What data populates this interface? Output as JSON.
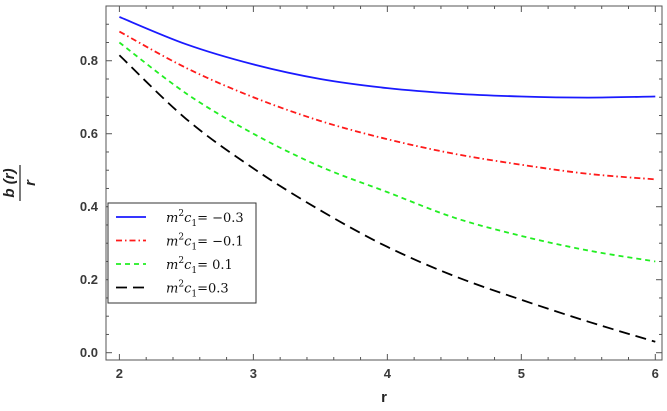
{
  "chart_data": {
    "type": "line",
    "xlabel": "r",
    "ylabel_num": "b (r)",
    "ylabel_den": "r",
    "xlim": [
      1.9,
      6.05
    ],
    "ylim": [
      -0.02,
      0.95
    ],
    "xticks": [
      2,
      3,
      4,
      5,
      6
    ],
    "xtick_labels": [
      "2",
      "3",
      "4",
      "5",
      "6"
    ],
    "yticks": [
      0.0,
      0.2,
      0.4,
      0.6,
      0.8
    ],
    "ytick_labels": [
      "0.0",
      "0.2",
      "0.4",
      "0.6",
      "0.8"
    ],
    "grid": false,
    "legend_position": "lower-left",
    "x": [
      2.0,
      2.5,
      3.0,
      3.5,
      4.0,
      4.5,
      5.0,
      5.5,
      6.0
    ],
    "series": [
      {
        "name": "m²c₁= −0.3",
        "legend_prefix": "m",
        "legend_sup": "2",
        "legend_mid": "c",
        "legend_sub": "1",
        "legend_value": "= −0.3",
        "color": "#1a1aff",
        "dash": "solid",
        "values": [
          0.92,
          0.845,
          0.79,
          0.75,
          0.725,
          0.71,
          0.702,
          0.699,
          0.702
        ]
      },
      {
        "name": "m²c₁= −0.1",
        "legend_prefix": "m",
        "legend_sup": "2",
        "legend_mid": "c",
        "legend_sub": "1",
        "legend_value": "= −0.1",
        "color": "#ff1a1a",
        "dash": "dashdot",
        "values": [
          0.88,
          0.78,
          0.7,
          0.635,
          0.585,
          0.545,
          0.515,
          0.49,
          0.475
        ]
      },
      {
        "name": "m²c₁= 0.1",
        "legend_prefix": "m",
        "legend_sup": "2",
        "legend_mid": "c",
        "legend_sub": "1",
        "legend_value": "= 0.1",
        "color": "#22ee22",
        "dash": "dashed",
        "values": [
          0.85,
          0.71,
          0.6,
          0.51,
          0.44,
          0.37,
          0.32,
          0.28,
          0.25
        ]
      },
      {
        "name": "m²c₁=0.3",
        "legend_prefix": "m",
        "legend_sup": "2",
        "legend_mid": "c",
        "legend_sub": "1",
        "legend_value": "=0.3",
        "color": "#000000",
        "dash": "longdash",
        "values": [
          0.815,
          0.64,
          0.505,
          0.39,
          0.29,
          0.21,
          0.145,
          0.085,
          0.03
        ]
      }
    ]
  }
}
